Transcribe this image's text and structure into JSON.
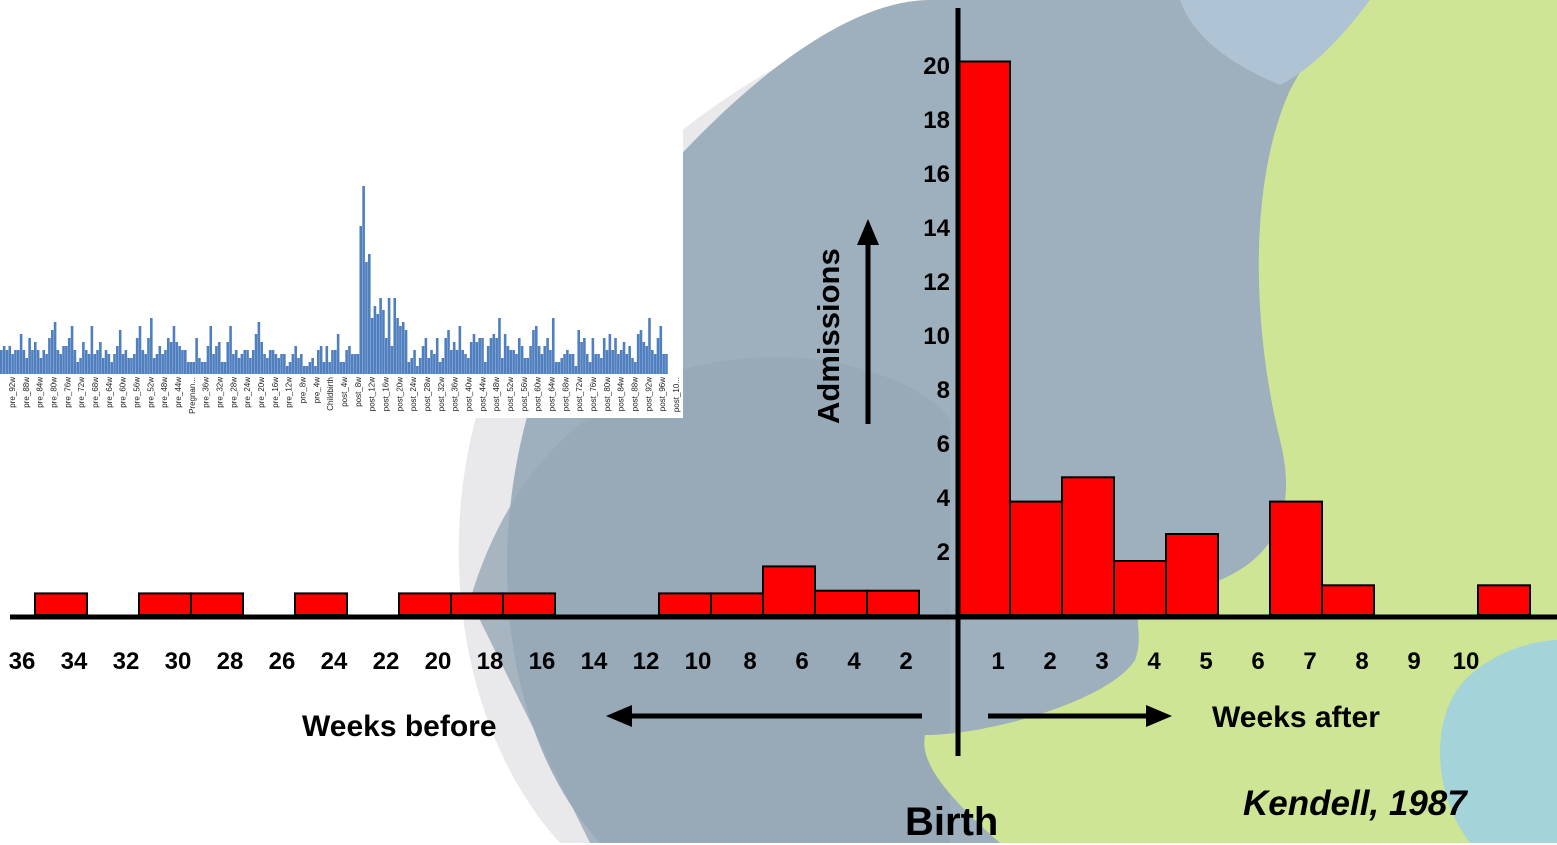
{
  "chart_data": [
    {
      "type": "bar",
      "ylabel": "Admissions",
      "y_ticks": [
        "2",
        "4",
        "6",
        "8",
        "10",
        "12",
        "14",
        "16",
        "18",
        "20"
      ],
      "before_ticks": [
        "36",
        "34",
        "32",
        "30",
        "28",
        "26",
        "24",
        "22",
        "20",
        "18",
        "16",
        "14",
        "12",
        "10",
        "8",
        "6",
        "4",
        "2"
      ],
      "after_ticks": [
        "1",
        "2",
        "3",
        "4",
        "5",
        "6",
        "7",
        "8",
        "9",
        "10"
      ],
      "before_label": "Weeks before",
      "after_label": "Weeks after",
      "center_label": "Birth",
      "citation": "Kendell, 1987",
      "before_bars": [
        {
          "from": 35.5,
          "to": 33.5,
          "value": 0.8
        },
        {
          "from": 31.5,
          "to": 29.5,
          "value": 0.8
        },
        {
          "from": 29.5,
          "to": 27.5,
          "value": 0.8
        },
        {
          "from": 25.5,
          "to": 23.5,
          "value": 0.8
        },
        {
          "from": 21.5,
          "to": 19.5,
          "value": 0.8
        },
        {
          "from": 19.5,
          "to": 17.5,
          "value": 0.8
        },
        {
          "from": 17.5,
          "to": 15.5,
          "value": 0.8
        },
        {
          "from": 11.5,
          "to": 9.5,
          "value": 0.8
        },
        {
          "from": 9.5,
          "to": 7.5,
          "value": 0.8
        },
        {
          "from": 7.5,
          "to": 5.5,
          "value": 1.8
        },
        {
          "from": 5.5,
          "to": 3.5,
          "value": 0.9
        },
        {
          "from": 3.5,
          "to": 1.5,
          "value": 0.9
        }
      ],
      "after_bars": [
        {
          "from": 0,
          "to": 1,
          "value": 20.5
        },
        {
          "from": 1,
          "to": 2,
          "value": 4.2
        },
        {
          "from": 2,
          "to": 3,
          "value": 5.1
        },
        {
          "from": 3,
          "to": 4,
          "value": 2.0
        },
        {
          "from": 4,
          "to": 5,
          "value": 3.0
        },
        {
          "from": 6,
          "to": 7,
          "value": 4.2
        },
        {
          "from": 7,
          "to": 8,
          "value": 1.1
        },
        {
          "from": 10,
          "to": 11,
          "value": 1.1
        }
      ],
      "colors": {
        "bar": "#ff0000",
        "outline": "#000000"
      }
    },
    {
      "type": "bar",
      "tick_labels": [
        "pre_92w",
        "pre_88w",
        "pre_84w",
        "pre_80w",
        "pre_76w",
        "pre_72w",
        "pre_68w",
        "pre_64w",
        "pre_60w",
        "pre_56w",
        "pre_52w",
        "pre_48w",
        "pre_44w",
        "Pregnan...",
        "pre_36w",
        "pre_32w",
        "pre_28w",
        "pre_24w",
        "pre_20w",
        "pre_16w",
        "pre_12w",
        "pre_8w",
        "pre_4w",
        "Childbirth",
        "post_4w",
        "post_8w",
        "post_12w",
        "post_16w",
        "post_20w",
        "post_24w",
        "post_28w",
        "post_32w",
        "post_36w",
        "post_40w",
        "post_44w",
        "post_48w",
        "post_52w",
        "post_56w",
        "post_60w",
        "post_64w",
        "post_68w",
        "post_72w",
        "post_76w",
        "post_80w",
        "post_84w",
        "post_88w",
        "post_92w",
        "post_96w",
        "post_10..."
      ],
      "values": [
        6,
        7,
        6,
        7,
        5,
        6,
        6,
        10,
        6,
        4,
        9,
        6,
        8,
        6,
        4,
        6,
        5,
        9,
        11,
        13,
        6,
        5,
        7,
        7,
        9,
        12,
        6,
        3,
        4,
        8,
        6,
        5,
        12,
        5,
        6,
        8,
        4,
        6,
        5,
        3,
        5,
        7,
        11,
        5,
        6,
        4,
        4,
        5,
        9,
        12,
        6,
        5,
        9,
        14,
        4,
        5,
        7,
        5,
        6,
        9,
        8,
        12,
        8,
        7,
        6,
        6,
        3,
        3,
        3,
        9,
        4,
        3,
        3,
        7,
        12,
        5,
        7,
        8,
        3,
        3,
        8,
        12,
        5,
        6,
        4,
        5,
        6,
        6,
        4,
        6,
        10,
        13,
        8,
        5,
        4,
        6,
        6,
        5,
        4,
        5,
        5,
        2,
        3,
        5,
        7,
        4,
        5,
        2,
        2,
        3,
        4,
        2,
        6,
        7,
        3,
        7,
        3,
        6,
        6,
        10,
        3,
        3,
        6,
        7,
        5,
        5,
        5,
        37,
        47,
        28,
        30,
        14,
        17,
        15,
        19,
        16,
        9,
        19,
        7,
        19,
        14,
        12,
        13,
        11,
        3,
        4,
        6,
        2,
        4,
        7,
        9,
        4,
        6,
        5,
        9,
        3,
        4,
        9,
        11,
        6,
        8,
        6,
        12,
        6,
        5,
        4,
        8,
        10,
        8,
        9,
        9,
        3,
        7,
        9,
        10,
        9,
        14,
        4,
        10,
        7,
        6,
        6,
        5,
        9,
        7,
        4,
        4,
        7,
        11,
        12,
        7,
        5,
        7,
        9,
        6,
        14,
        3,
        3,
        4,
        5,
        6,
        5,
        5,
        2,
        11,
        8,
        9,
        5,
        3,
        9,
        5,
        5,
        4,
        9,
        6,
        10,
        6,
        9,
        5,
        6,
        8,
        5,
        7,
        4,
        3,
        10,
        11,
        8,
        7,
        14,
        6,
        5,
        9,
        12,
        5,
        5
      ],
      "color": "#4f7fbf"
    }
  ],
  "colors": {
    "slate": "#9eafbd",
    "lime": "#cde594",
    "teal": "#a4d4da",
    "band": "#e9e9ec"
  }
}
